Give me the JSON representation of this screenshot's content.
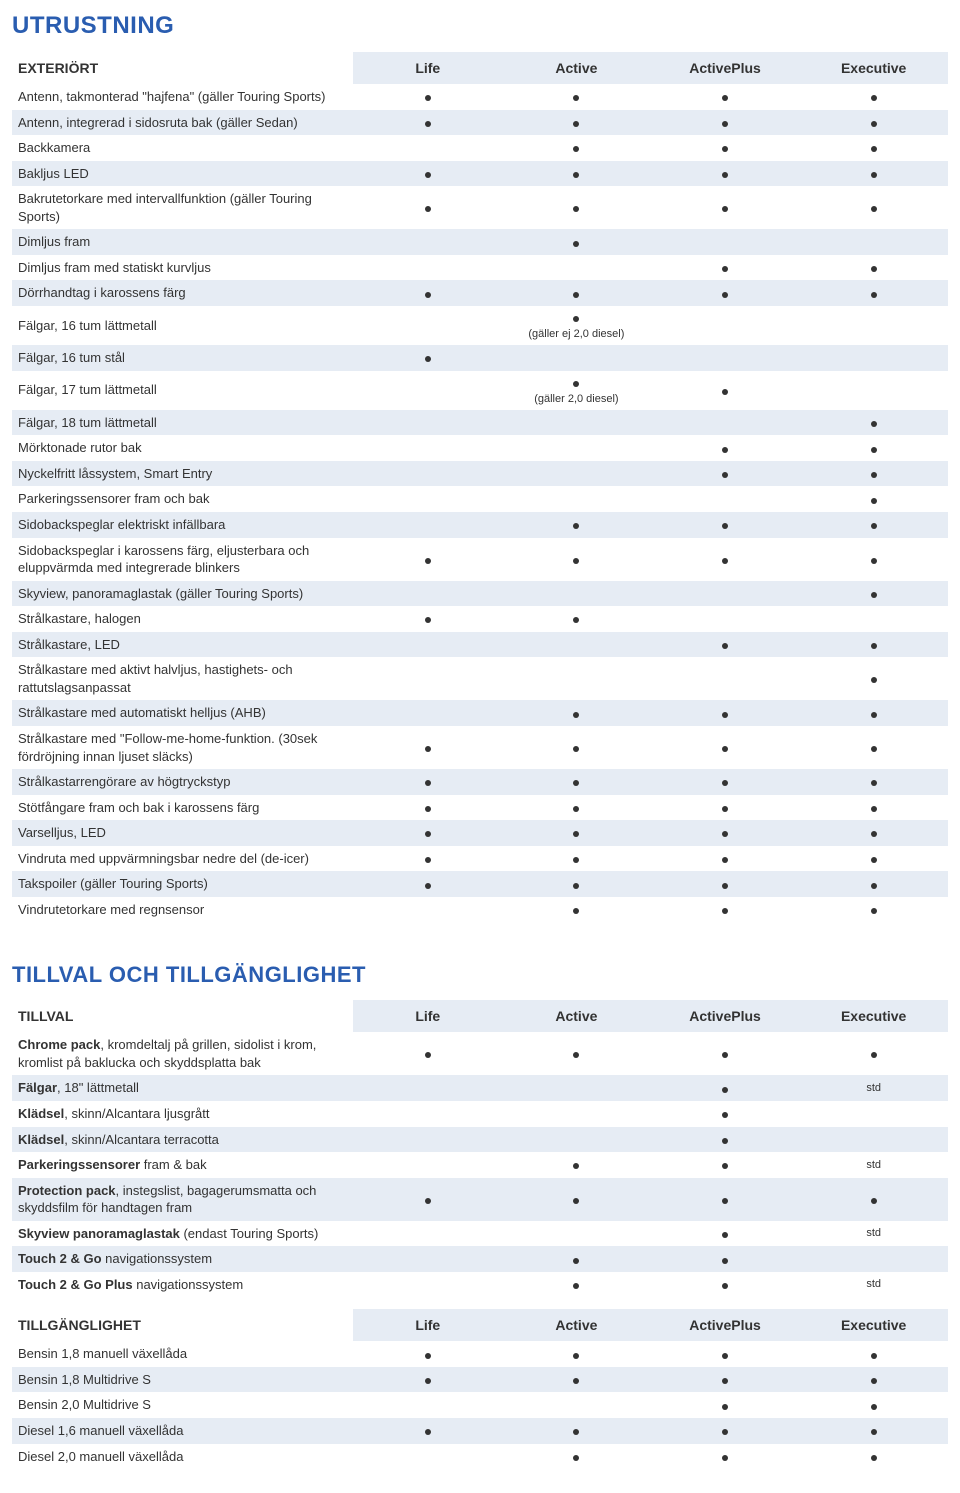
{
  "colors": {
    "accent": "#2a5db0",
    "row_alt_bg": "#e6ecf4",
    "text": "#333333",
    "bg": "#ffffff",
    "dot": "#333333"
  },
  "typography": {
    "body_font": "Arial",
    "h1_size_pt": 18,
    "h2_size_pt": 16,
    "cell_size_pt": 10,
    "header_size_pt": 11
  },
  "headers": [
    "Life",
    "Active",
    "ActivePlus",
    "Executive"
  ],
  "sections": [
    {
      "title": "UTRUSTNING",
      "level": "h1",
      "groups": [
        {
          "subheader": "EXTERIÖRT",
          "show_column_headers": true,
          "rows": [
            {
              "label": "Antenn, takmonterad \"hajfena\" (gäller Touring Sports)",
              "cells": [
                "•",
                "•",
                "•",
                "•"
              ]
            },
            {
              "label": "Antenn, integrerad i sidosruta bak (gäller Sedan)",
              "cells": [
                "•",
                "•",
                "•",
                "•"
              ]
            },
            {
              "label": "Backkamera",
              "cells": [
                "",
                "•",
                "•",
                "•"
              ]
            },
            {
              "label": "Bakljus LED",
              "cells": [
                "•",
                "•",
                "•",
                "•"
              ]
            },
            {
              "label": "Bakrutetorkare med intervallfunktion (gäller Touring Sports)",
              "cells": [
                "•",
                "•",
                "•",
                "•"
              ]
            },
            {
              "label": "Dimljus fram",
              "cells": [
                "",
                "•",
                "",
                ""
              ]
            },
            {
              "label": "Dimljus fram med statiskt kurvljus",
              "cells": [
                "",
                "",
                "•",
                "•"
              ]
            },
            {
              "label": "Dörrhandtag i karossens färg",
              "cells": [
                "•",
                "•",
                "•",
                "•"
              ]
            },
            {
              "label": "Fälgar, 16 tum lättmetall",
              "cells": [
                "",
                "•\n(gäller ej 2,0 diesel)",
                "",
                ""
              ]
            },
            {
              "label": "Fälgar, 16 tum stål",
              "cells": [
                "•",
                "",
                "",
                ""
              ]
            },
            {
              "label": "Fälgar, 17 tum lättmetall",
              "cells": [
                "",
                "•\n(gäller 2,0 diesel)",
                "•",
                ""
              ]
            },
            {
              "label": "Fälgar, 18 tum lättmetall",
              "cells": [
                "",
                "",
                "",
                "•"
              ]
            },
            {
              "label": "Mörktonade rutor bak",
              "cells": [
                "",
                "",
                "•",
                "•"
              ]
            },
            {
              "label": "Nyckelfritt låssystem, Smart Entry",
              "cells": [
                "",
                "",
                "•",
                "•"
              ]
            },
            {
              "label": "Parkeringssensorer fram och bak",
              "cells": [
                "",
                "",
                "",
                "•"
              ]
            },
            {
              "label": "Sidobackspeglar elektriskt infällbara",
              "cells": [
                "",
                "•",
                "•",
                "•"
              ]
            },
            {
              "label": "Sidobackspeglar i karossens färg, eljusterbara och eluppvärmda med integrerade blinkers",
              "cells": [
                "•",
                "•",
                "•",
                "•"
              ]
            },
            {
              "label": "Skyview, panoramaglastak (gäller Touring Sports)",
              "cells": [
                "",
                "",
                "",
                "•"
              ]
            },
            {
              "label": "Strålkastare, halogen",
              "cells": [
                "•",
                "•",
                "",
                ""
              ]
            },
            {
              "label": "Strålkastare, LED",
              "cells": [
                "",
                "",
                "•",
                "•"
              ]
            },
            {
              "label": "Strålkastare med aktivt halvljus, hastighets- och rattutslagsanpassat",
              "cells": [
                "",
                "",
                "",
                "•"
              ]
            },
            {
              "label": "Strålkastare med automatiskt helljus (AHB)",
              "cells": [
                "",
                "•",
                "•",
                "•"
              ]
            },
            {
              "label": "Strålkastare med \"Follow-me-home-funktion. (30sek fördröjning innan ljuset släcks)",
              "cells": [
                "•",
                "•",
                "•",
                "•"
              ]
            },
            {
              "label": "Strålkastarrengörare av högtryckstyp",
              "cells": [
                "•",
                "•",
                "•",
                "•"
              ]
            },
            {
              "label": "Stötfångare fram och bak i karossens färg",
              "cells": [
                "•",
                "•",
                "•",
                "•"
              ]
            },
            {
              "label": "Varselljus, LED",
              "cells": [
                "•",
                "•",
                "•",
                "•"
              ]
            },
            {
              "label": "Vindruta med uppvärmningsbar nedre del (de-icer)",
              "cells": [
                "•",
                "•",
                "•",
                "•"
              ]
            },
            {
              "label": "Takspoiler (gäller Touring Sports)",
              "cells": [
                "•",
                "•",
                "•",
                "•"
              ]
            },
            {
              "label": "Vindrutetorkare med regnsensor",
              "cells": [
                "",
                "•",
                "•",
                "•"
              ]
            }
          ]
        }
      ]
    },
    {
      "title": "TILLVAL OCH TILLGÄNGLIGHET",
      "level": "h2",
      "groups": [
        {
          "subheader": "TILLVAL",
          "show_column_headers": true,
          "rows": [
            {
              "bold_prefix": "Chrome pack",
              "label_rest": ", kromdeltalj på grillen, sidolist i krom, kromlist på baklucka och skyddsplatta bak",
              "cells": [
                "•",
                "•",
                "•",
                "•"
              ]
            },
            {
              "bold_prefix": "Fälgar",
              "label_rest": ", 18\" lättmetall",
              "cells": [
                "",
                "",
                "•",
                "std"
              ]
            },
            {
              "bold_prefix": "Klädsel",
              "label_rest": ", skinn/Alcantara ljusgrått",
              "cells": [
                "",
                "",
                "•",
                ""
              ]
            },
            {
              "bold_prefix": "Klädsel",
              "label_rest": ", skinn/Alcantara terracotta",
              "cells": [
                "",
                "",
                "•",
                ""
              ]
            },
            {
              "bold_prefix": "Parkeringssensorer",
              "label_rest": " fram & bak",
              "cells": [
                "",
                "•",
                "•",
                "std"
              ]
            },
            {
              "bold_prefix": "Protection pack",
              "label_rest": ", instegslist, bagagerumsmatta och skyddsfilm för handtagen fram",
              "cells": [
                "•",
                "•",
                "•",
                "•"
              ]
            },
            {
              "bold_prefix": "Skyview panoramaglastak",
              "label_rest": " (endast Touring Sports)",
              "cells": [
                "",
                "",
                "•",
                "std"
              ]
            },
            {
              "bold_prefix": "Touch 2 & Go",
              "label_rest": " navigationssystem",
              "cells": [
                "",
                "•",
                "•",
                ""
              ]
            },
            {
              "bold_prefix": "Touch 2 & Go Plus",
              "label_rest": " navigationssystem",
              "cells": [
                "",
                "•",
                "•",
                "std"
              ]
            }
          ]
        },
        {
          "subheader": "TILLGÄNGLIGHET",
          "show_column_headers": true,
          "rows": [
            {
              "label": "Bensin 1,8 manuell växellåda",
              "cells": [
                "•",
                "•",
                "•",
                "•"
              ]
            },
            {
              "label": "Bensin 1,8 Multidrive S",
              "cells": [
                "•",
                "•",
                "•",
                "•"
              ]
            },
            {
              "label": "Bensin 2,0 Multidrive S",
              "cells": [
                "",
                "",
                "•",
                "•"
              ]
            },
            {
              "label": "Diesel 1,6 manuell växellåda",
              "cells": [
                "•",
                "•",
                "•",
                "•"
              ]
            },
            {
              "label": "Diesel 2,0 manuell växellåda",
              "cells": [
                "",
                "•",
                "•",
                "•"
              ]
            }
          ]
        }
      ]
    }
  ]
}
